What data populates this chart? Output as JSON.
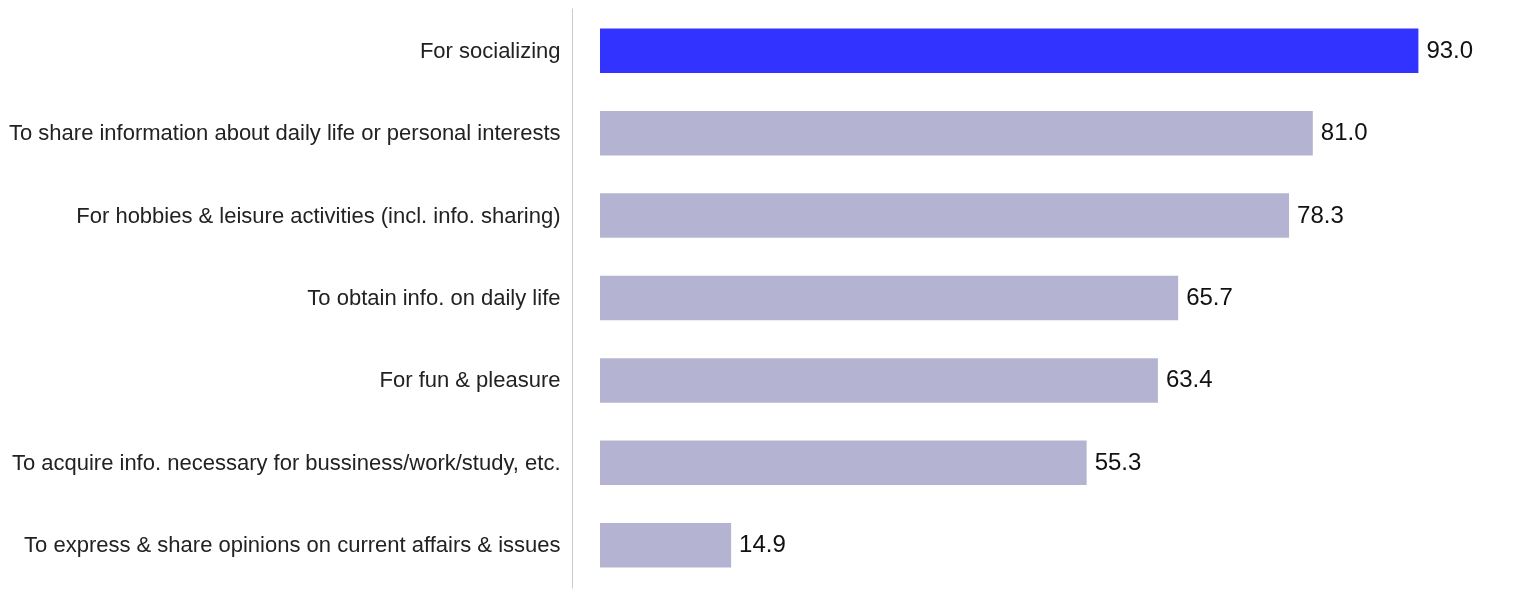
{
  "chart_data": {
    "type": "bar",
    "orientation": "horizontal",
    "categories": [
      "For socializing",
      "To share information about daily life or personal interests",
      "For hobbies & leisure activities (incl. info. sharing)",
      "To obtain info. on daily life",
      "For fun & pleasure",
      "To acquire info. necessary for bussiness/work/study, etc.",
      "To express & share opinions on current affairs & issues"
    ],
    "values": [
      93.0,
      81.0,
      78.3,
      65.7,
      63.4,
      55.3,
      14.9
    ],
    "colors": [
      "#3333ff",
      "#b4b4d2",
      "#b4b4d2",
      "#b4b4d2",
      "#b4b4d2",
      "#b4b4d2",
      "#b4b4d2"
    ],
    "value_labels": [
      "93.0",
      "81.0",
      "78.3",
      "65.7",
      "63.4",
      "55.3",
      "14.9"
    ]
  }
}
